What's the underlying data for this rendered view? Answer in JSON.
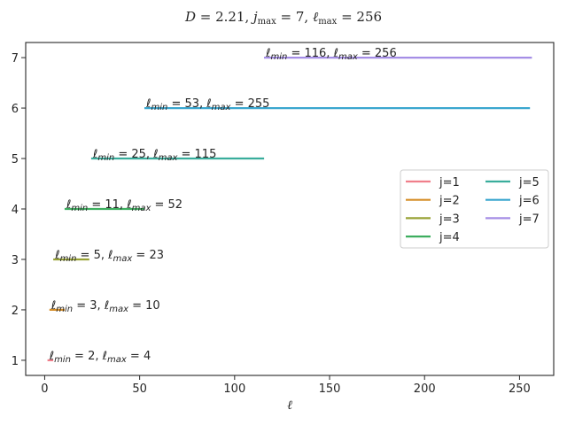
{
  "chart_data": {
    "type": "line",
    "title": "D = 2.21,  j_max = 7,  ℓ_max = 256",
    "title_parts": {
      "D": "2.21",
      "j_max": "7",
      "l_max": "256"
    },
    "xlabel": "ℓ",
    "ylabel": "",
    "xlim": [
      -10,
      268
    ],
    "ylim": [
      0.7,
      7.3
    ],
    "xticks": [
      0,
      50,
      100,
      150,
      200,
      250
    ],
    "yticks": [
      1,
      2,
      3,
      4,
      5,
      6,
      7
    ],
    "grid": false,
    "legend_position": "center-right",
    "legend_columns": 2,
    "series": [
      {
        "name": "j=1",
        "j": 1,
        "l_min": 2,
        "l_max": 4,
        "color": "#f07f8b"
      },
      {
        "name": "j=2",
        "j": 2,
        "l_min": 3,
        "l_max": 10,
        "color": "#d68f2a"
      },
      {
        "name": "j=3",
        "j": 3,
        "l_min": 5,
        "l_max": 23,
        "color": "#98a235"
      },
      {
        "name": "j=4",
        "j": 4,
        "l_min": 11,
        "l_max": 52,
        "color": "#3dae5f"
      },
      {
        "name": "j=5",
        "j": 5,
        "l_min": 25,
        "l_max": 115,
        "color": "#39ad9c"
      },
      {
        "name": "j=6",
        "j": 6,
        "l_min": 53,
        "l_max": 255,
        "color": "#3aa6cf"
      },
      {
        "name": "j=7",
        "j": 7,
        "l_min": 116,
        "l_max": 256,
        "color": "#a58ee6"
      }
    ]
  }
}
